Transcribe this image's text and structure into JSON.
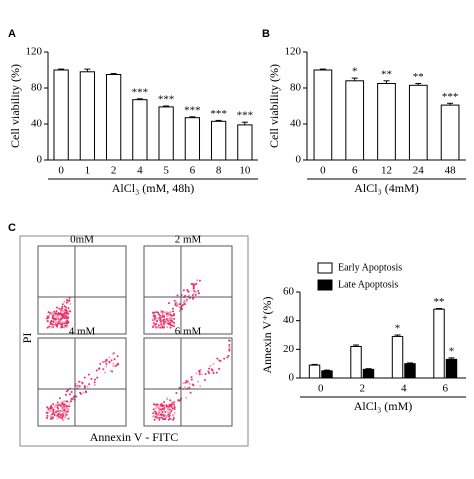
{
  "chart_data": [
    {
      "type": "bar",
      "panel": "A",
      "y_label": "Cell viability (%)",
      "x_label": "AlCl₃ (mM, 48h)",
      "categories": [
        "0",
        "1",
        "2",
        "4",
        "5",
        "6",
        "8",
        "10"
      ],
      "values": [
        100,
        98,
        95,
        67,
        59,
        47,
        43,
        39
      ],
      "errors": [
        1,
        3,
        1,
        1,
        1,
        1,
        1,
        3
      ],
      "significance": [
        null,
        null,
        null,
        "***",
        "***",
        "***",
        "***",
        "***"
      ],
      "color": "#ffffff",
      "ylim": [
        0,
        120
      ],
      "yticks": [
        0,
        40,
        80,
        120
      ]
    },
    {
      "type": "bar",
      "panel": "B",
      "y_label": "Cell viability (%)",
      "x_label": "AlCl₃ (4mM)",
      "categories": [
        "0",
        "6",
        "12",
        "24",
        "48"
      ],
      "values": [
        100,
        88,
        85,
        83,
        61
      ],
      "errors": [
        1,
        3,
        3,
        2,
        2
      ],
      "significance": [
        null,
        "*",
        "**",
        "**",
        "***"
      ],
      "color": "#ffffff",
      "ylim": [
        0,
        120
      ],
      "yticks": [
        0,
        40,
        80,
        120
      ]
    },
    {
      "type": "bar",
      "panel": "C",
      "y_label": "Annexin V⁺(%)",
      "x_label": "AlCl₃ (mM)",
      "categories": [
        "0",
        "2",
        "4",
        "6"
      ],
      "series": [
        {
          "name": "Early Apoptosis",
          "color": "#ffffff",
          "values": [
            9,
            22,
            29,
            48
          ],
          "errors": [
            0.5,
            1,
            1,
            0.5
          ],
          "significance": [
            null,
            null,
            "*",
            "**"
          ]
        },
        {
          "name": "Late Apoptosis",
          "color": "#000000",
          "values": [
            5,
            6,
            10,
            13
          ],
          "errors": [
            0.5,
            0.5,
            0.5,
            1
          ],
          "significance": [
            null,
            null,
            null,
            "*"
          ]
        }
      ],
      "legend": "upper-right",
      "ylim": [
        0,
        60
      ],
      "yticks": [
        0,
        20,
        40,
        60
      ]
    }
  ],
  "flow_cytometry": {
    "panels": [
      "0mM",
      "2 mM",
      "4 mM",
      "6 mM"
    ],
    "y_label": "PI",
    "x_label": "Annexin V - FITC"
  }
}
